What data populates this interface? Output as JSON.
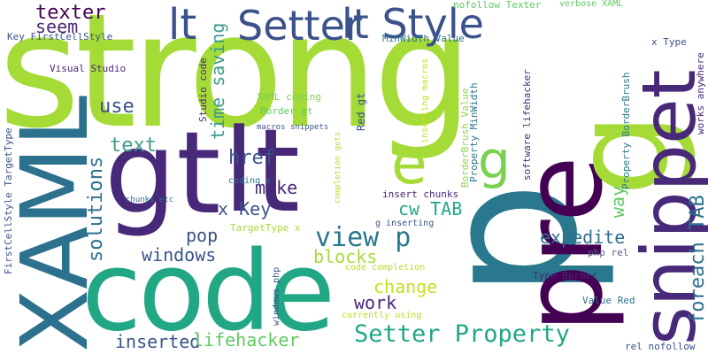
{
  "words": [
    {
      "text": "strong",
      "color": "#a5db36"
    },
    {
      "text": "p",
      "color": "#2a788e"
    },
    {
      "text": "lt",
      "color": "#482878"
    },
    {
      "text": "gt",
      "color": "#482878"
    },
    {
      "text": "code",
      "color": "#22a785"
    },
    {
      "text": "pre",
      "color": "#440154"
    },
    {
      "text": "g",
      "color": "#a5db36"
    },
    {
      "text": "XAML",
      "color": "#2c718e"
    },
    {
      "text": "snippet",
      "color": "#482878"
    },
    {
      "text": "lt Style",
      "color": "#3b528b"
    },
    {
      "text": "Setter",
      "color": "#3b528b"
    },
    {
      "text": "lt",
      "color": "#3b528b"
    },
    {
      "text": "e",
      "color": "#a5db36"
    },
    {
      "text": "g",
      "color": "#7ad151"
    },
    {
      "text": "view p",
      "color": "#2a788e"
    },
    {
      "text": "Setter Property",
      "color": "#22a785"
    },
    {
      "text": "foreach TAB",
      "color": "#2c718e"
    },
    {
      "text": "texter",
      "color": "#440154"
    },
    {
      "text": "seem",
      "color": "#482878"
    },
    {
      "text": "time saving",
      "color": "#3e9b8a"
    },
    {
      "text": "use",
      "color": "#3b528b"
    },
    {
      "text": "text",
      "color": "#3e9b8a"
    },
    {
      "text": "solutions",
      "color": "#2c718e"
    },
    {
      "text": "href",
      "color": "#3b528b"
    },
    {
      "text": "make",
      "color": "#482878"
    },
    {
      "text": "x Key",
      "color": "#3b528b"
    },
    {
      "text": "cw TAB",
      "color": "#22a785"
    },
    {
      "text": "way",
      "color": "#5ec962"
    },
    {
      "text": "pop",
      "color": "#3b528b"
    },
    {
      "text": "windows",
      "color": "#3b528b"
    },
    {
      "text": "expedite",
      "color": "#2c718e"
    },
    {
      "text": "blocks",
      "color": "#a5db36"
    },
    {
      "text": "change",
      "color": "#c8e020"
    },
    {
      "text": "work",
      "color": "#482878"
    },
    {
      "text": "inserted",
      "color": "#3b528b"
    },
    {
      "text": "lifehacker",
      "color": "#5ec962"
    },
    {
      "text": "Key FirstCellStyle",
      "color": "#3b528b"
    },
    {
      "text": "Visual Studio",
      "color": "#482878"
    },
    {
      "text": "FirstCellStyle TargetType",
      "color": "#3b528b"
    },
    {
      "text": "nofollow Texter",
      "color": "#5ec962"
    },
    {
      "text": "verbose XAML",
      "color": "#5ec962"
    },
    {
      "text": "MinWidth Value",
      "color": "#2c718e"
    },
    {
      "text": "x Type",
      "color": "#3b528b"
    },
    {
      "text": "works anywhere",
      "color": "#482878"
    },
    {
      "text": "Property BorderBrush",
      "color": "#2a788e"
    },
    {
      "text": "software lifehacker",
      "color": "#482878"
    },
    {
      "text": "BorderBrush Value",
      "color": "#8fd744"
    },
    {
      "text": "Property MinWidth",
      "color": "#2a788e"
    },
    {
      "text": "inserting macros",
      "color": "#c8e020"
    },
    {
      "text": "Red gt",
      "color": "#3b528b"
    },
    {
      "text": "Studio code",
      "color": "#482878"
    },
    {
      "text": "XAML coding",
      "color": "#7ad151"
    },
    {
      "text": "Border gt",
      "color": "#5ec962"
    },
    {
      "text": "macros snippets",
      "color": "#3b528b"
    },
    {
      "text": "completion gets",
      "color": "#b5de2b"
    },
    {
      "text": "coding e",
      "color": "#2c718e"
    },
    {
      "text": "insert chunks",
      "color": "#482878"
    },
    {
      "text": "chunks etc",
      "color": "#2c718e"
    },
    {
      "text": "TargetType x",
      "color": "#a5db36"
    },
    {
      "text": "g inserting",
      "color": "#3b528b"
    },
    {
      "text": "windows php",
      "color": "#3b528b"
    },
    {
      "text": "code completion",
      "color": "#b5de2b"
    },
    {
      "text": "php rel",
      "color": "#5b5b8a"
    },
    {
      "text": "Type Border",
      "color": "#482878"
    },
    {
      "text": "currently using",
      "color": "#b5de2b"
    },
    {
      "text": "Value Red",
      "color": "#2c718e"
    },
    {
      "text": "rel nofollow",
      "color": "#3b528b"
    }
  ]
}
